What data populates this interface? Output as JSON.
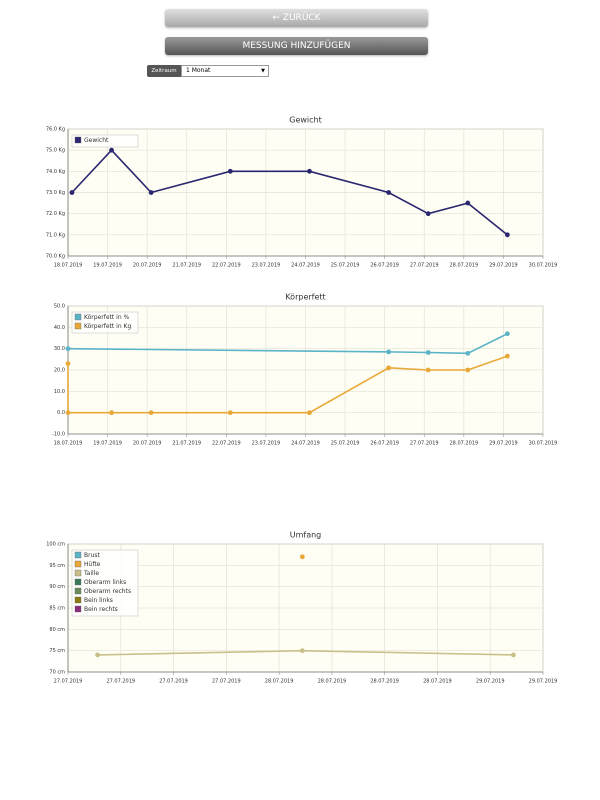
{
  "nav": {
    "back": "← ZURÜCK",
    "add": "MESSUNG HINZUFÜGEN"
  },
  "filter": {
    "label": "Zeitraum",
    "selected": "1 Monat"
  },
  "chart_data": [
    {
      "type": "line",
      "title": "Gewicht",
      "legend": "upper left",
      "grid": true,
      "xlim": [
        18,
        30
      ],
      "xticks": [
        {
          "value": 18,
          "label": "18.07.2019"
        },
        {
          "value": 19,
          "label": "19.07.2019"
        },
        {
          "value": 20,
          "label": "20.07.2019"
        },
        {
          "value": 21,
          "label": "21.07.2019"
        },
        {
          "value": 22,
          "label": "22.07.2019"
        },
        {
          "value": 23,
          "label": "23.07.2019"
        },
        {
          "value": 24,
          "label": "24.07.2019"
        },
        {
          "value": 25,
          "label": "25.07.2019"
        },
        {
          "value": 26,
          "label": "26.07.2019"
        },
        {
          "value": 27,
          "label": "27.07.2019"
        },
        {
          "value": 28,
          "label": "28.07.2019"
        },
        {
          "value": 29,
          "label": "29.07.2019"
        },
        {
          "value": 30,
          "label": "30.07.2019"
        }
      ],
      "ylim": [
        70,
        76
      ],
      "yticks": [
        {
          "value": 70,
          "label": "70.0 Kg"
        },
        {
          "value": 71,
          "label": "71.0 Kg"
        },
        {
          "value": 72,
          "label": "72.0 Kg"
        },
        {
          "value": 73,
          "label": "73.0 Kg"
        },
        {
          "value": 74,
          "label": "74.0 Kg"
        },
        {
          "value": 75,
          "label": "75.0 Kg"
        },
        {
          "value": 76,
          "label": "76.0 Kg"
        }
      ],
      "series": [
        {
          "name": "Gewicht",
          "color": "#2a2670",
          "x": [
            18.1,
            19.1,
            20.1,
            22.1,
            24.1,
            26.1,
            27.1,
            28.1,
            29.1
          ],
          "values": [
            73.0,
            75.0,
            73.0,
            74.0,
            74.0,
            73.0,
            72.0,
            72.5,
            71.0
          ]
        }
      ]
    },
    {
      "type": "line",
      "title": "Körperfett",
      "legend": "upper left",
      "grid": true,
      "xlim": [
        18,
        30
      ],
      "xticks": [
        {
          "value": 18,
          "label": "18.07.2019"
        },
        {
          "value": 19,
          "label": "19.07.2019"
        },
        {
          "value": 20,
          "label": "20.07.2019"
        },
        {
          "value": 21,
          "label": "21.07.2019"
        },
        {
          "value": 22,
          "label": "22.07.2019"
        },
        {
          "value": 23,
          "label": "23.07.2019"
        },
        {
          "value": 24,
          "label": "24.07.2019"
        },
        {
          "value": 25,
          "label": "25.07.2019"
        },
        {
          "value": 26,
          "label": "26.07.2019"
        },
        {
          "value": 27,
          "label": "27.07.2019"
        },
        {
          "value": 28,
          "label": "28.07.2019"
        },
        {
          "value": 29,
          "label": "29.07.2019"
        },
        {
          "value": 30,
          "label": "30.07.2019"
        }
      ],
      "ylim": [
        -10,
        50
      ],
      "yticks": [
        {
          "value": -10,
          "label": "-10.0"
        },
        {
          "value": 0,
          "label": "0.0"
        },
        {
          "value": 10,
          "label": "10.0"
        },
        {
          "value": 20,
          "label": "20.0"
        },
        {
          "value": 30,
          "label": "30.0"
        },
        {
          "value": 40,
          "label": "40.0"
        },
        {
          "value": 50,
          "label": "50.0"
        }
      ],
      "series": [
        {
          "name": "Körperfett in %",
          "color": "#5ab4c8",
          "x": [
            18.0,
            26.1,
            27.1,
            28.1,
            29.1
          ],
          "values": [
            30.0,
            28.5,
            28.2,
            27.8,
            37.0
          ]
        },
        {
          "name": "Körperfett in Kg",
          "color": "#e8a838",
          "x": [
            18.0,
            18.0,
            19.1,
            20.1,
            22.1,
            24.1,
            26.1,
            27.1,
            28.1,
            29.1
          ],
          "values": [
            23.0,
            0,
            0,
            0,
            0,
            0,
            21.0,
            20.0,
            20.0,
            26.5
          ]
        }
      ]
    },
    {
      "type": "line",
      "title": "Umfang",
      "legend": "upper left",
      "grid": true,
      "xlim": [
        27,
        29.25
      ],
      "xticks": [
        {
          "value": 27,
          "label": "27.07.2019"
        },
        {
          "value": 27.25,
          "label": "27.07.2019"
        },
        {
          "value": 27.5,
          "label": "27.07.2019"
        },
        {
          "value": 27.75,
          "label": "27.07.2019"
        },
        {
          "value": 28,
          "label": "28.07.2019"
        },
        {
          "value": 28.25,
          "label": "28.07.2019"
        },
        {
          "value": 28.5,
          "label": "28.07.2019"
        },
        {
          "value": 28.75,
          "label": "28.07.2019"
        },
        {
          "value": 29,
          "label": "29.07.2019"
        },
        {
          "value": 29.25,
          "label": "29.07.2019"
        }
      ],
      "ylim": [
        70,
        100
      ],
      "yticks": [
        {
          "value": 70,
          "label": "70 cm"
        },
        {
          "value": 75,
          "label": "75 cm"
        },
        {
          "value": 80,
          "label": "80 cm"
        },
        {
          "value": 85,
          "label": "85 cm"
        },
        {
          "value": 90,
          "label": "90 cm"
        },
        {
          "value": 95,
          "label": "95 cm"
        },
        {
          "value": 100,
          "label": "100 cm"
        }
      ],
      "series": [
        {
          "name": "Brust",
          "color": "#5ab4c8",
          "x": [
            27.14,
            28.11,
            29.11
          ],
          "values": [
            null,
            null,
            null
          ]
        },
        {
          "name": "Hüfte",
          "color": "#e8a838",
          "x": [
            27.14,
            28.11,
            29.11
          ],
          "values": [
            null,
            97.0,
            null
          ]
        },
        {
          "name": "Taille",
          "color": "#c8c088",
          "x": [
            27.14,
            28.11,
            29.11
          ],
          "values": [
            74.0,
            75.0,
            74.0
          ]
        },
        {
          "name": "Oberarm links",
          "color": "#3a7a5a",
          "x": [
            27.14,
            28.11,
            29.11
          ],
          "values": [
            null,
            null,
            null
          ]
        },
        {
          "name": "Oberarm rechts",
          "color": "#6a8a5a",
          "x": [
            27.14,
            28.11,
            29.11
          ],
          "values": [
            null,
            null,
            null
          ]
        },
        {
          "name": "Bein links",
          "color": "#8a7a10",
          "x": [
            27.14,
            28.11,
            29.11
          ],
          "values": [
            null,
            null,
            null
          ]
        },
        {
          "name": "Bein rechts",
          "color": "#8a2a7a",
          "x": [
            27.14,
            28.11,
            29.11
          ],
          "values": [
            null,
            null,
            null
          ]
        }
      ]
    }
  ]
}
